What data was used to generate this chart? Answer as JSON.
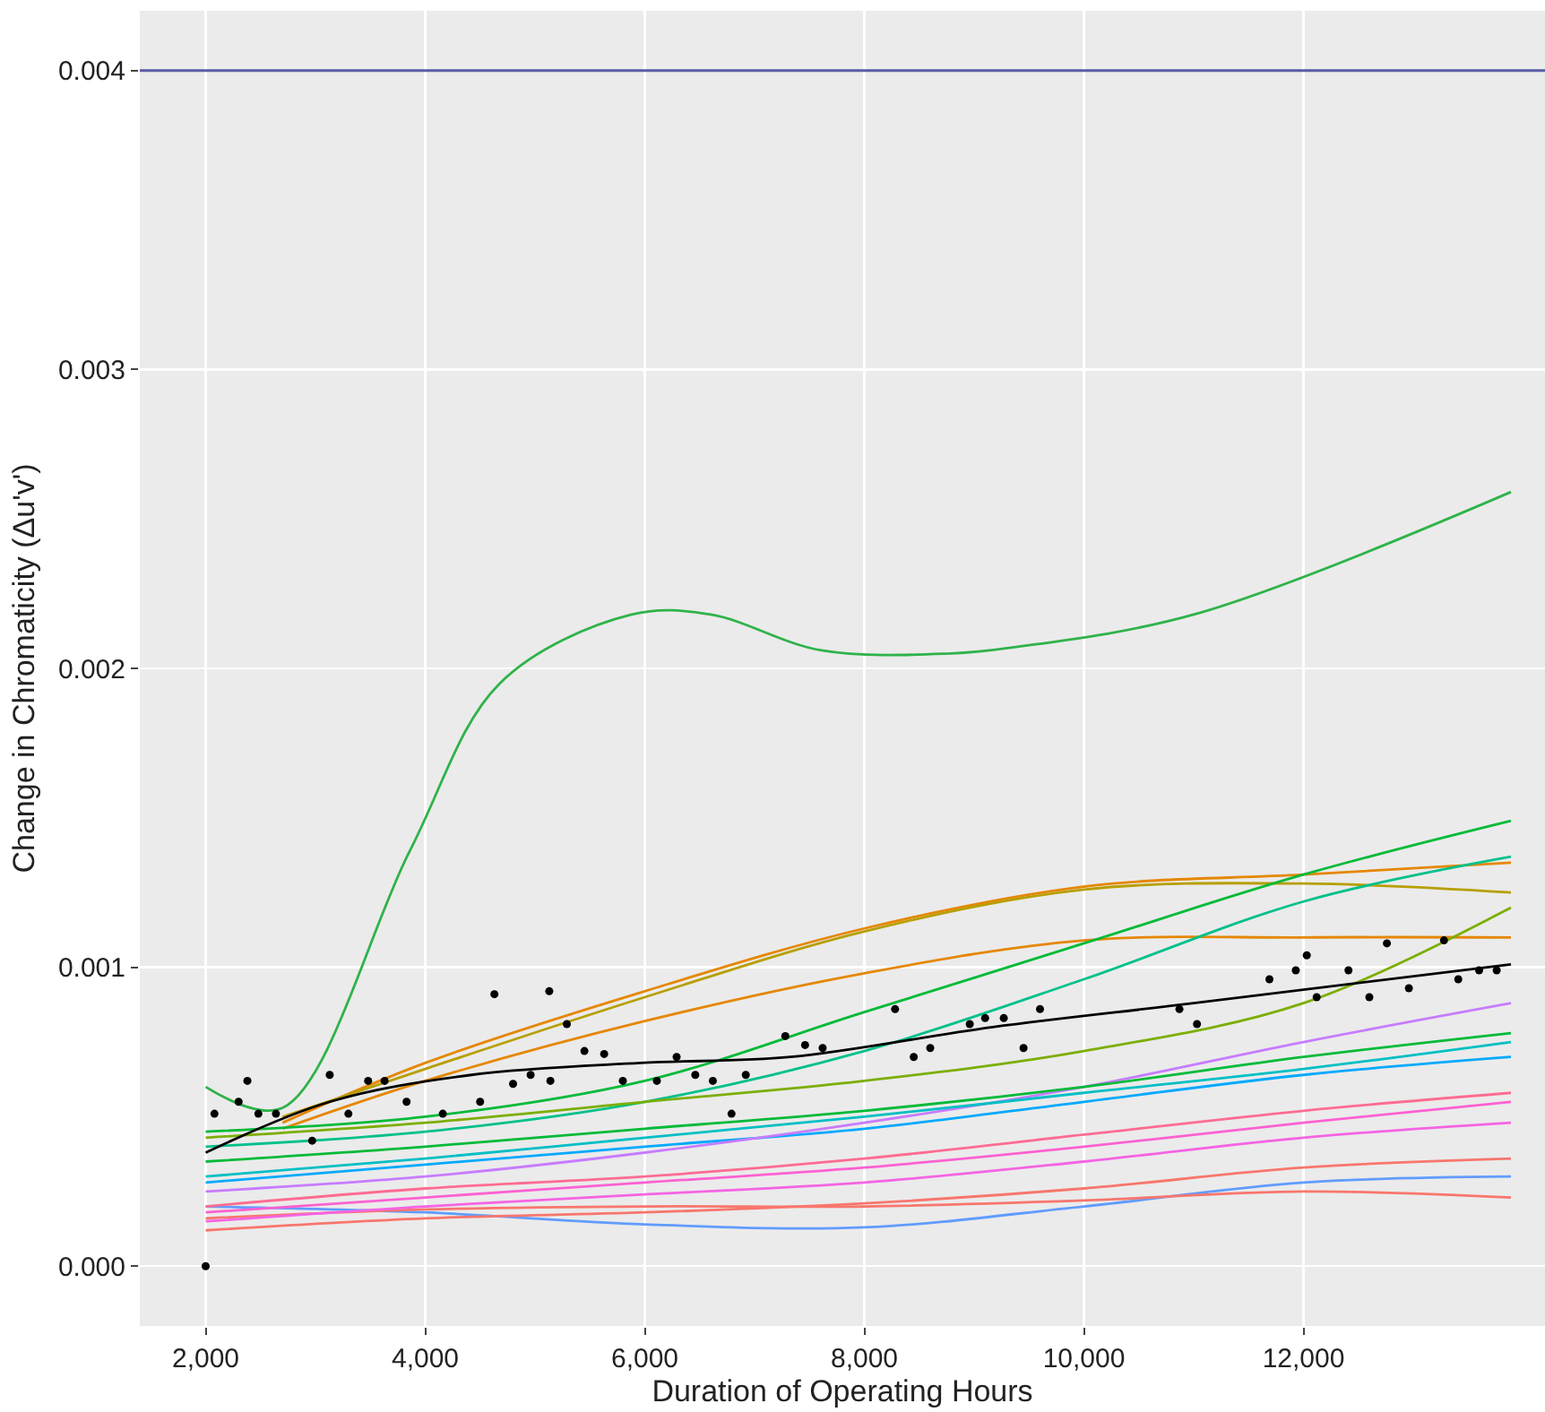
{
  "chart_data": {
    "type": "line",
    "xlabel": "Duration of Operating Hours",
    "ylabel": "Change in Chromaticity (Δu'v')",
    "xlim": [
      1400,
      14200
    ],
    "ylim": [
      -0.0002,
      0.0042
    ],
    "xticks": [
      {
        "value": 2000,
        "label": "2,000"
      },
      {
        "value": 4000,
        "label": "4,000"
      },
      {
        "value": 6000,
        "label": "6,000"
      },
      {
        "value": 8000,
        "label": "8,000"
      },
      {
        "value": 10000,
        "label": "10,000"
      },
      {
        "value": 12000,
        "label": "12,000"
      }
    ],
    "yticks": [
      {
        "value": 0,
        "label": "0.000"
      },
      {
        "value": 0.001,
        "label": "0.001"
      },
      {
        "value": 0.002,
        "label": "0.002"
      },
      {
        "value": 0.003,
        "label": "0.003"
      },
      {
        "value": 0.004,
        "label": "0.004"
      }
    ],
    "grid": true,
    "x": [
      2000,
      4000,
      6000,
      8000,
      10000,
      12000,
      13890
    ],
    "ref_lines": [
      {
        "axis": "y",
        "value": 0.004,
        "color": "#5b5ba8"
      }
    ],
    "series": [
      {
        "color": "#e58700",
        "x": [
          2700,
          4000,
          6000,
          8000,
          10000,
          12000,
          13890
        ],
        "values": [
          0.00048,
          0.00068,
          0.00092,
          0.00113,
          0.00127,
          0.00131,
          0.00135
        ]
      },
      {
        "color": "#b79f00",
        "x": [
          2700,
          4000,
          6000,
          8000,
          10000,
          12000,
          13890
        ],
        "values": [
          0.0005,
          0.00066,
          0.0009,
          0.00112,
          0.00126,
          0.00128,
          0.00125
        ]
      },
      {
        "color": "#e58700",
        "x": [
          2700,
          4000,
          6000,
          8000,
          10000,
          12000,
          13890
        ],
        "values": [
          0.00046,
          0.00062,
          0.00082,
          0.00098,
          0.00109,
          0.0011,
          0.0011
        ]
      },
      {
        "color": "#00ba38",
        "values": [
          0.00045,
          0.0005,
          0.00062,
          0.00085,
          0.00108,
          0.00131,
          0.00149
        ]
      },
      {
        "color": "#00c08b",
        "values": [
          0.0004,
          0.00045,
          0.00055,
          0.00072,
          0.00096,
          0.00122,
          0.00137
        ]
      },
      {
        "color": "#7cae00",
        "values": [
          0.00043,
          0.00048,
          0.00055,
          0.00062,
          0.00072,
          0.00088,
          0.0012
        ]
      },
      {
        "color": "#00a9ff",
        "values": [
          0.00028,
          0.00034,
          0.0004,
          0.00046,
          0.00055,
          0.00064,
          0.0007
        ]
      },
      {
        "color": "#c77cff",
        "values": [
          0.00025,
          0.0003,
          0.00038,
          0.00048,
          0.0006,
          0.00075,
          0.00088
        ]
      },
      {
        "color": "#00ba38",
        "values": [
          0.00035,
          0.0004,
          0.00046,
          0.00052,
          0.0006,
          0.0007,
          0.00078
        ]
      },
      {
        "color": "#00bfc4",
        "values": [
          0.0003,
          0.00036,
          0.00043,
          0.0005,
          0.00058,
          0.00066,
          0.00075
        ]
      },
      {
        "color": "#619cff",
        "values": [
          0.0002,
          0.00018,
          0.00014,
          0.00013,
          0.0002,
          0.00028,
          0.0003
        ]
      },
      {
        "color": "#f8766d",
        "values": [
          0.00016,
          0.00019,
          0.0002,
          0.0002,
          0.00022,
          0.00025,
          0.00023
        ]
      },
      {
        "color": "#f8766d",
        "values": [
          0.00012,
          0.00016,
          0.00018,
          0.00021,
          0.00026,
          0.00033,
          0.00036
        ]
      },
      {
        "color": "#fd61d1",
        "values": [
          0.00018,
          0.00023,
          0.00028,
          0.00033,
          0.0004,
          0.00048,
          0.00055
        ]
      },
      {
        "color": "#f564e3",
        "values": [
          0.00015,
          0.0002,
          0.00024,
          0.00028,
          0.00035,
          0.00043,
          0.00048
        ]
      },
      {
        "color": "#ff6c91",
        "values": [
          0.0002,
          0.00026,
          0.0003,
          0.00036,
          0.00044,
          0.00052,
          0.00058
        ]
      },
      {
        "color": "#2fb34a",
        "x": [
          2000,
          2700,
          3860,
          4680,
          5880,
          6600,
          7610,
          8790,
          9350,
          11000,
          13890
        ],
        "values": [
          0.0006,
          0.00053,
          0.00139,
          0.00195,
          0.00218,
          0.00218,
          0.00206,
          0.00205,
          0.00207,
          0.00218,
          0.00259
        ]
      },
      {
        "color": "#000000",
        "x": [
          2000,
          3130,
          4420,
          5960,
          7330,
          9170,
          11000,
          13890
        ],
        "values": [
          0.00038,
          0.00055,
          0.00064,
          0.00068,
          0.0007,
          0.0008,
          0.00088,
          0.00101
        ]
      },
      {
        "type": "scatter",
        "color": "#000000",
        "x": [
          2000,
          2080,
          2300,
          2380,
          2480,
          2640,
          2970,
          3130,
          3300,
          3480,
          3630,
          3830,
          4160,
          4500,
          4630,
          4800,
          4960,
          5130,
          5140,
          5290,
          5450,
          5630,
          5800,
          6110,
          6290,
          6460,
          6620,
          6790,
          6920,
          7280,
          7460,
          7620,
          8280,
          8450,
          8600,
          8960,
          9100,
          9270,
          9450,
          9600,
          10870,
          11030,
          11690,
          11930,
          12030,
          12120,
          12410,
          12600,
          12760,
          12960,
          13280,
          13410,
          13600,
          13760
        ],
        "values": [
          0,
          0.00051,
          0.00055,
          0.00062,
          0.00051,
          0.00051,
          0.00042,
          0.00064,
          0.00051,
          0.00062,
          0.00062,
          0.00055,
          0.00051,
          0.00055,
          0.00091,
          0.00061,
          0.00064,
          0.00092,
          0.00062,
          0.00081,
          0.00072,
          0.00071,
          0.00062,
          0.00062,
          0.0007,
          0.00064,
          0.00062,
          0.00051,
          0.00064,
          0.00077,
          0.00074,
          0.00073,
          0.00086,
          0.0007,
          0.00073,
          0.00081,
          0.00083,
          0.00083,
          0.00073,
          0.00086,
          0.00086,
          0.00081,
          0.00096,
          0.00099,
          0.00104,
          0.0009,
          0.00099,
          0.0009,
          0.00108,
          0.00093,
          0.00109,
          0.00096,
          0.00099,
          0.00099
        ]
      }
    ]
  }
}
